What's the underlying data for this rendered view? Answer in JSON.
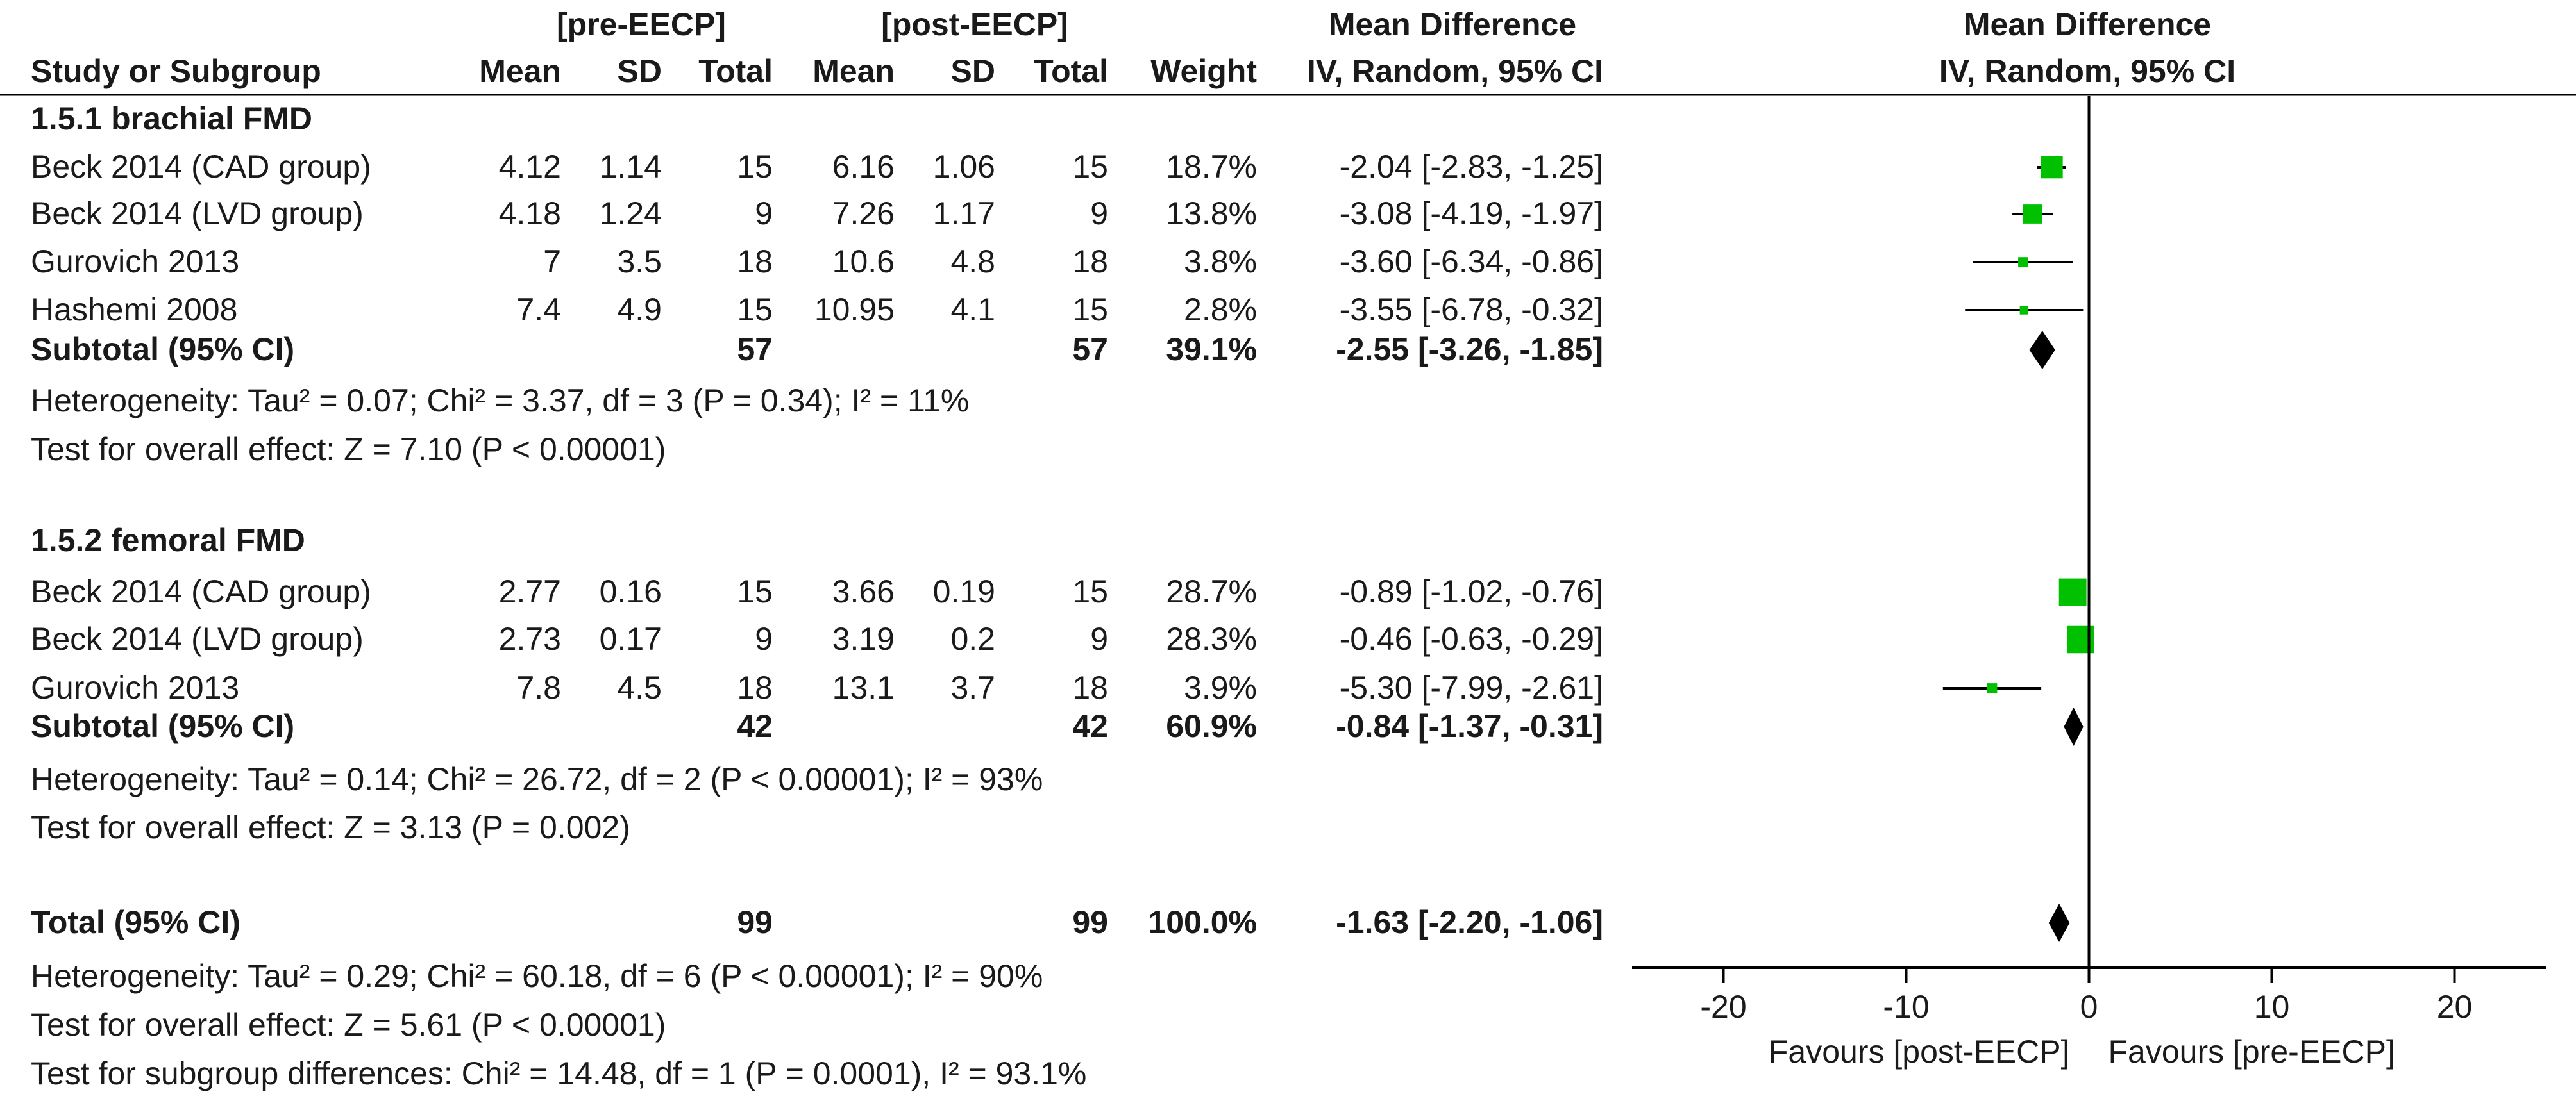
{
  "chart_data": {
    "type": "forest",
    "header": {
      "group1": "[pre-EECP]",
      "group2": "[post-EECP]",
      "md_table": "Mean Difference",
      "md_plot": "Mean Difference",
      "study_col": "Study or Subgroup",
      "mean1": "Mean",
      "sd1": "SD",
      "total1": "Total",
      "mean2": "Mean",
      "sd2": "SD",
      "total2": "Total",
      "weight": "Weight",
      "method_table": "IV, Random, 95% CI",
      "method_plot": "IV, Random, 95% CI"
    },
    "subgroups": [
      {
        "title": "1.5.1 brachial FMD",
        "studies": [
          {
            "name": "Beck 2014 (CAD group)",
            "mean1": "4.12",
            "sd1": "1.14",
            "n1": "15",
            "mean2": "6.16",
            "sd2": "1.06",
            "n2": "15",
            "weight": "18.7%",
            "ci_text": "-2.04 [-2.83, -1.25]",
            "md": -2.04,
            "lo": -2.83,
            "hi": -1.25,
            "w": 18.7
          },
          {
            "name": "Beck 2014 (LVD group)",
            "mean1": "4.18",
            "sd1": "1.24",
            "n1": "9",
            "mean2": "7.26",
            "sd2": "1.17",
            "n2": "9",
            "weight": "13.8%",
            "ci_text": "-3.08 [-4.19, -1.97]",
            "md": -3.08,
            "lo": -4.19,
            "hi": -1.97,
            "w": 13.8
          },
          {
            "name": "Gurovich 2013",
            "mean1": "7",
            "sd1": "3.5",
            "n1": "18",
            "mean2": "10.6",
            "sd2": "4.8",
            "n2": "18",
            "weight": "3.8%",
            "ci_text": "-3.60 [-6.34, -0.86]",
            "md": -3.6,
            "lo": -6.34,
            "hi": -0.86,
            "w": 3.8
          },
          {
            "name": "Hashemi 2008",
            "mean1": "7.4",
            "sd1": "4.9",
            "n1": "15",
            "mean2": "10.95",
            "sd2": "4.1",
            "n2": "15",
            "weight": "2.8%",
            "ci_text": "-3.55 [-6.78, -0.32]",
            "md": -3.55,
            "lo": -6.78,
            "hi": -0.32,
            "w": 2.8
          }
        ],
        "subtotal": {
          "label": "Subtotal (95% CI)",
          "n1": "57",
          "n2": "57",
          "weight": "39.1%",
          "ci_text": "-2.55 [-3.26, -1.85]",
          "md": -2.55,
          "lo": -3.26,
          "hi": -1.85
        },
        "heterogeneity": "Heterogeneity: Tau² = 0.07; Chi² = 3.37, df = 3 (P = 0.34); I² = 11%",
        "overall": "Test for overall effect: Z = 7.10 (P < 0.00001)"
      },
      {
        "title": "1.5.2 femoral FMD",
        "studies": [
          {
            "name": "Beck 2014 (CAD group)",
            "mean1": "2.77",
            "sd1": "0.16",
            "n1": "15",
            "mean2": "3.66",
            "sd2": "0.19",
            "n2": "15",
            "weight": "28.7%",
            "ci_text": "-0.89 [-1.02, -0.76]",
            "md": -0.89,
            "lo": -1.02,
            "hi": -0.76,
            "w": 28.7
          },
          {
            "name": "Beck 2014 (LVD group)",
            "mean1": "2.73",
            "sd1": "0.17",
            "n1": "9",
            "mean2": "3.19",
            "sd2": "0.2",
            "n2": "9",
            "weight": "28.3%",
            "ci_text": "-0.46 [-0.63, -0.29]",
            "md": -0.46,
            "lo": -0.63,
            "hi": -0.29,
            "w": 28.3
          },
          {
            "name": "Gurovich 2013",
            "mean1": "7.8",
            "sd1": "4.5",
            "n1": "18",
            "mean2": "13.1",
            "sd2": "3.7",
            "n2": "18",
            "weight": "3.9%",
            "ci_text": "-5.30 [-7.99, -2.61]",
            "md": -5.3,
            "lo": -7.99,
            "hi": -2.61,
            "w": 3.9
          }
        ],
        "subtotal": {
          "label": "Subtotal (95% CI)",
          "n1": "42",
          "n2": "42",
          "weight": "60.9%",
          "ci_text": "-0.84 [-1.37, -0.31]",
          "md": -0.84,
          "lo": -1.37,
          "hi": -0.31
        },
        "heterogeneity": "Heterogeneity: Tau² = 0.14; Chi² = 26.72, df = 2 (P < 0.00001); I² = 93%",
        "overall": "Test for overall effect: Z = 3.13 (P = 0.002)"
      }
    ],
    "total": {
      "label": "Total (95% CI)",
      "n1": "99",
      "n2": "99",
      "weight": "100.0%",
      "ci_text": "-1.63 [-2.20, -1.06]",
      "md": -1.63,
      "lo": -2.2,
      "hi": -1.06
    },
    "total_heterogeneity": "Heterogeneity: Tau² = 0.29; Chi² = 60.18, df = 6 (P < 0.00001); I² = 90%",
    "total_overall": "Test for overall effect: Z = 5.61 (P < 0.00001)",
    "subgroup_diff": "Test for subgroup differences: Chi² = 14.48, df = 1 (P = 0.0001), I² = 93.1%",
    "xaxis": {
      "min": -25,
      "max": 25,
      "ticks": [
        -20,
        -10,
        0,
        10,
        20
      ],
      "tick_labels": [
        "-20",
        "-10",
        "0",
        "10",
        "20"
      ],
      "label_left": "Favours [post-EECP]",
      "label_right": "Favours [pre-EECP]"
    },
    "colors": {
      "square": "#00c000",
      "line": "#000000",
      "text": "#1a1a1a"
    }
  }
}
